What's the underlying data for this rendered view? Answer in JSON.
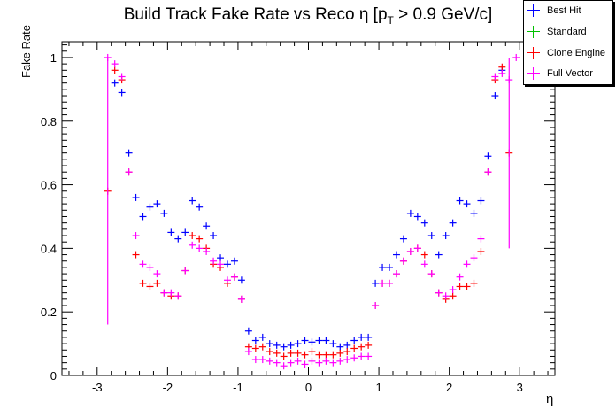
{
  "chart_data": {
    "type": "scatter",
    "title_main": "Build Track Fake Rate vs Reco η [p",
    "title_sub": "T",
    "title_tail": " > 0.9 GeV/c]",
    "xlabel": "η",
    "ylabel": "Fake Rate",
    "xlim": [
      -3.5,
      3.5
    ],
    "ylim": [
      0,
      1.05
    ],
    "xticks": [
      "-3",
      "-2",
      "-1",
      "0",
      "1",
      "2",
      "3"
    ],
    "yticks": [
      "0",
      "0.2",
      "0.4",
      "0.6",
      "0.8",
      "1"
    ],
    "legend_position": "top-right",
    "series": [
      {
        "name": "Best Hit",
        "color": "#0000ff",
        "points": [
          [
            -2.75,
            0.92
          ],
          [
            -2.65,
            0.89
          ],
          [
            -2.55,
            0.7
          ],
          [
            -2.45,
            0.56
          ],
          [
            -2.35,
            0.5
          ],
          [
            -2.25,
            0.53
          ],
          [
            -2.15,
            0.54
          ],
          [
            -2.05,
            0.51
          ],
          [
            -1.95,
            0.45
          ],
          [
            -1.85,
            0.43
          ],
          [
            -1.75,
            0.45
          ],
          [
            -1.65,
            0.55
          ],
          [
            -1.55,
            0.53
          ],
          [
            -1.45,
            0.47
          ],
          [
            -1.35,
            0.44
          ],
          [
            -1.25,
            0.37
          ],
          [
            -1.15,
            0.35
          ],
          [
            -1.05,
            0.36
          ],
          [
            -0.95,
            0.3
          ],
          [
            -0.85,
            0.14
          ],
          [
            -0.75,
            0.11
          ],
          [
            -0.65,
            0.12
          ],
          [
            -0.55,
            0.1
          ],
          [
            -0.45,
            0.095
          ],
          [
            -0.35,
            0.09
          ],
          [
            -0.25,
            0.095
          ],
          [
            -0.15,
            0.1
          ],
          [
            -0.05,
            0.11
          ],
          [
            0.05,
            0.105
          ],
          [
            0.15,
            0.11
          ],
          [
            0.25,
            0.11
          ],
          [
            0.35,
            0.1
          ],
          [
            0.45,
            0.09
          ],
          [
            0.55,
            0.095
          ],
          [
            0.65,
            0.11
          ],
          [
            0.75,
            0.12
          ],
          [
            0.85,
            0.12
          ],
          [
            0.95,
            0.29
          ],
          [
            1.05,
            0.34
          ],
          [
            1.15,
            0.34
          ],
          [
            1.25,
            0.38
          ],
          [
            1.35,
            0.43
          ],
          [
            1.45,
            0.51
          ],
          [
            1.55,
            0.5
          ],
          [
            1.65,
            0.48
          ],
          [
            1.75,
            0.44
          ],
          [
            1.85,
            0.38
          ],
          [
            1.95,
            0.44
          ],
          [
            2.05,
            0.48
          ],
          [
            2.15,
            0.55
          ],
          [
            2.25,
            0.54
          ],
          [
            2.35,
            0.51
          ],
          [
            2.45,
            0.55
          ],
          [
            2.55,
            0.69
          ],
          [
            2.65,
            0.88
          ],
          [
            2.75,
            0.96
          ]
        ]
      },
      {
        "name": "Standard",
        "color": "#00c000",
        "points": []
      },
      {
        "name": "Clone Engine",
        "color": "#ff0000",
        "points": [
          [
            -2.85,
            0.58
          ],
          [
            -2.75,
            0.96
          ],
          [
            -2.65,
            0.93
          ],
          [
            -2.55,
            0.64
          ],
          [
            -2.45,
            0.38
          ],
          [
            -2.35,
            0.29
          ],
          [
            -2.25,
            0.28
          ],
          [
            -2.15,
            0.29
          ],
          [
            -2.05,
            0.26
          ],
          [
            -1.95,
            0.25
          ],
          [
            -1.85,
            0.25
          ],
          [
            -1.75,
            0.33
          ],
          [
            -1.65,
            0.44
          ],
          [
            -1.55,
            0.43
          ],
          [
            -1.45,
            0.4
          ],
          [
            -1.35,
            0.35
          ],
          [
            -1.25,
            0.34
          ],
          [
            -1.15,
            0.29
          ],
          [
            -1.05,
            0.31
          ],
          [
            -0.95,
            0.24
          ],
          [
            -0.85,
            0.09
          ],
          [
            -0.75,
            0.085
          ],
          [
            -0.65,
            0.09
          ],
          [
            -0.55,
            0.075
          ],
          [
            -0.45,
            0.07
          ],
          [
            -0.35,
            0.06
          ],
          [
            -0.25,
            0.07
          ],
          [
            -0.15,
            0.07
          ],
          [
            -0.05,
            0.065
          ],
          [
            0.05,
            0.075
          ],
          [
            0.15,
            0.065
          ],
          [
            0.25,
            0.065
          ],
          [
            0.35,
            0.065
          ],
          [
            0.45,
            0.07
          ],
          [
            0.55,
            0.075
          ],
          [
            0.65,
            0.085
          ],
          [
            0.75,
            0.09
          ],
          [
            0.85,
            0.095
          ],
          [
            0.95,
            0.22
          ],
          [
            1.05,
            0.29
          ],
          [
            1.15,
            0.29
          ],
          [
            1.25,
            0.32
          ],
          [
            1.35,
            0.36
          ],
          [
            1.45,
            0.39
          ],
          [
            1.55,
            0.4
          ],
          [
            1.65,
            0.38
          ],
          [
            1.75,
            0.32
          ],
          [
            1.85,
            0.26
          ],
          [
            1.95,
            0.24
          ],
          [
            2.05,
            0.25
          ],
          [
            2.15,
            0.28
          ],
          [
            2.25,
            0.28
          ],
          [
            2.35,
            0.29
          ],
          [
            2.45,
            0.39
          ],
          [
            2.55,
            0.64
          ],
          [
            2.65,
            0.93
          ],
          [
            2.75,
            0.97
          ],
          [
            2.85,
            0.7
          ]
        ]
      },
      {
        "name": "Full Vector",
        "color": "#ff00ff",
        "points": [
          [
            -2.85,
            1.0
          ],
          [
            -2.75,
            0.98
          ],
          [
            -2.65,
            0.94
          ],
          [
            -2.55,
            0.64
          ],
          [
            -2.45,
            0.44
          ],
          [
            -2.35,
            0.35
          ],
          [
            -2.25,
            0.34
          ],
          [
            -2.15,
            0.32
          ],
          [
            -2.05,
            0.26
          ],
          [
            -1.95,
            0.26
          ],
          [
            -1.85,
            0.25
          ],
          [
            -1.75,
            0.33
          ],
          [
            -1.65,
            0.41
          ],
          [
            -1.55,
            0.4
          ],
          [
            -1.45,
            0.39
          ],
          [
            -1.35,
            0.36
          ],
          [
            -1.25,
            0.35
          ],
          [
            -1.15,
            0.3
          ],
          [
            -1.05,
            0.31
          ],
          [
            -0.95,
            0.24
          ],
          [
            -0.85,
            0.075
          ],
          [
            -0.75,
            0.05
          ],
          [
            -0.65,
            0.05
          ],
          [
            -0.55,
            0.045
          ],
          [
            -0.45,
            0.04
          ],
          [
            -0.35,
            0.03
          ],
          [
            -0.25,
            0.04
          ],
          [
            -0.15,
            0.045
          ],
          [
            -0.05,
            0.035
          ],
          [
            0.05,
            0.045
          ],
          [
            0.15,
            0.04
          ],
          [
            0.25,
            0.045
          ],
          [
            0.35,
            0.04
          ],
          [
            0.45,
            0.045
          ],
          [
            0.55,
            0.05
          ],
          [
            0.65,
            0.055
          ],
          [
            0.75,
            0.06
          ],
          [
            0.85,
            0.06
          ],
          [
            0.95,
            0.22
          ],
          [
            1.05,
            0.29
          ],
          [
            1.15,
            0.29
          ],
          [
            1.25,
            0.32
          ],
          [
            1.35,
            0.36
          ],
          [
            1.45,
            0.39
          ],
          [
            1.55,
            0.4
          ],
          [
            1.65,
            0.35
          ],
          [
            1.75,
            0.32
          ],
          [
            1.85,
            0.26
          ],
          [
            1.95,
            0.25
          ],
          [
            2.05,
            0.27
          ],
          [
            2.15,
            0.31
          ],
          [
            2.25,
            0.35
          ],
          [
            2.35,
            0.37
          ],
          [
            2.45,
            0.43
          ],
          [
            2.55,
            0.64
          ],
          [
            2.65,
            0.94
          ],
          [
            2.75,
            0.95
          ],
          [
            2.85,
            0.93
          ],
          [
            2.95,
            1.0
          ]
        ],
        "error_bars": [
          {
            "x": -2.85,
            "low": 0.16,
            "high": 1.0
          },
          {
            "x": 2.85,
            "low": 0.4,
            "high": 1.0
          }
        ]
      }
    ]
  }
}
